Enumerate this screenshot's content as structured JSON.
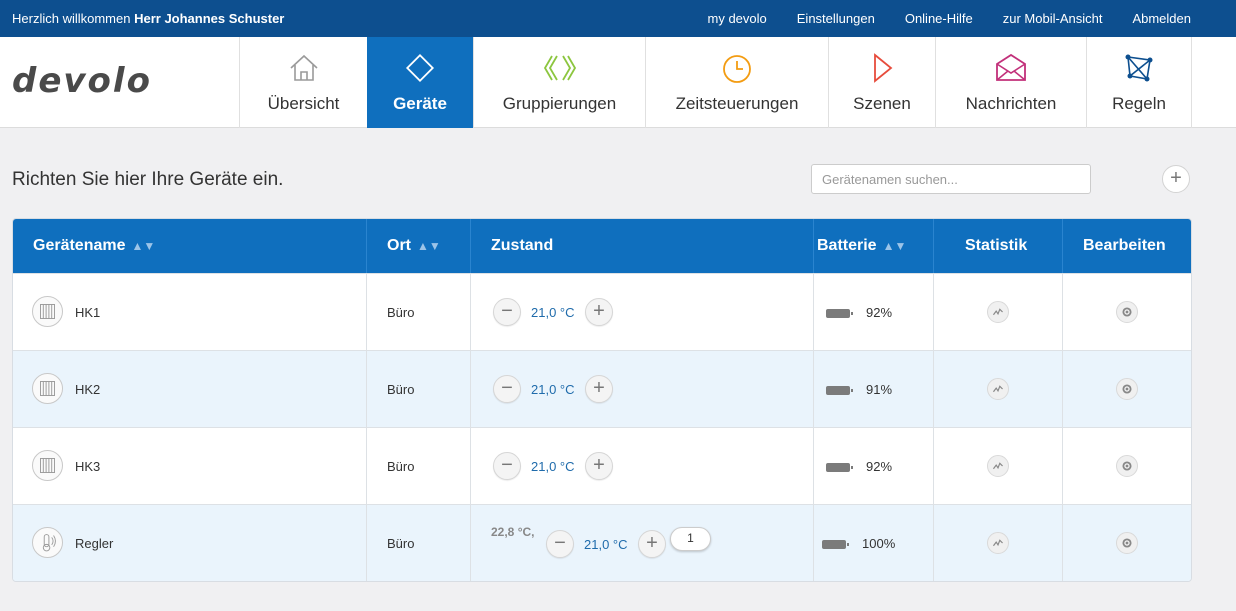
{
  "topbar": {
    "welcome_prefix": "Herzlich willkommen",
    "user_name": "Herr Johannes Schuster",
    "links": [
      "my devolo",
      "Einstellungen",
      "Online-Hilfe",
      "zur Mobil-Ansicht",
      "Abmelden"
    ]
  },
  "brand": {
    "logo_text": "devolo"
  },
  "nav": {
    "tabs": [
      {
        "label": "Übersicht",
        "icon": "house-icon",
        "color": "#9a9a9a"
      },
      {
        "label": "Geräte",
        "icon": "diamond-icon",
        "color": "#ffffff",
        "active": true
      },
      {
        "label": "Gruppierungen",
        "icon": "chevrons-icon",
        "color": "#8cc63f"
      },
      {
        "label": "Zeitsteuerungen",
        "icon": "clock-icon",
        "color": "#f39c12"
      },
      {
        "label": "Szenen",
        "icon": "play-icon",
        "color": "#e74c3c"
      },
      {
        "label": "Nachrichten",
        "icon": "envelope-icon",
        "color": "#c2307a"
      },
      {
        "label": "Regeln",
        "icon": "network-icon",
        "color": "#0d4f8f"
      }
    ]
  },
  "page": {
    "intro": "Richten Sie hier Ihre Geräte ein.",
    "search_placeholder": "Gerätenamen suchen...",
    "add_symbol": "+"
  },
  "table": {
    "headers": {
      "name": "Gerätename",
      "ort": "Ort",
      "zustand": "Zustand",
      "batterie": "Batterie",
      "statistik": "Statistik",
      "bearbeiten": "Bearbeiten"
    },
    "rows": [
      {
        "name": "HK1",
        "icon": "radiator-icon",
        "ort": "Büro",
        "temp": "21,0 °C",
        "battery": "92%"
      },
      {
        "name": "HK2",
        "icon": "radiator-icon",
        "ort": "Büro",
        "temp": "21,0 °C",
        "battery": "91%"
      },
      {
        "name": "HK3",
        "icon": "radiator-icon",
        "ort": "Büro",
        "temp": "21,0 °C",
        "battery": "92%"
      },
      {
        "name": "Regler",
        "icon": "thermostat-icon",
        "ort": "Büro",
        "current": "22,8 °C,",
        "temp": "21,0 °C",
        "battery": "100%",
        "mode": "1"
      }
    ],
    "minus_symbol": "−",
    "plus_symbol": "+"
  },
  "colors": {
    "topbar": "#0d4f8f",
    "accent": "#0f6fbe",
    "alt_row": "#eaf4fc",
    "temp_text": "#1f6bab"
  }
}
